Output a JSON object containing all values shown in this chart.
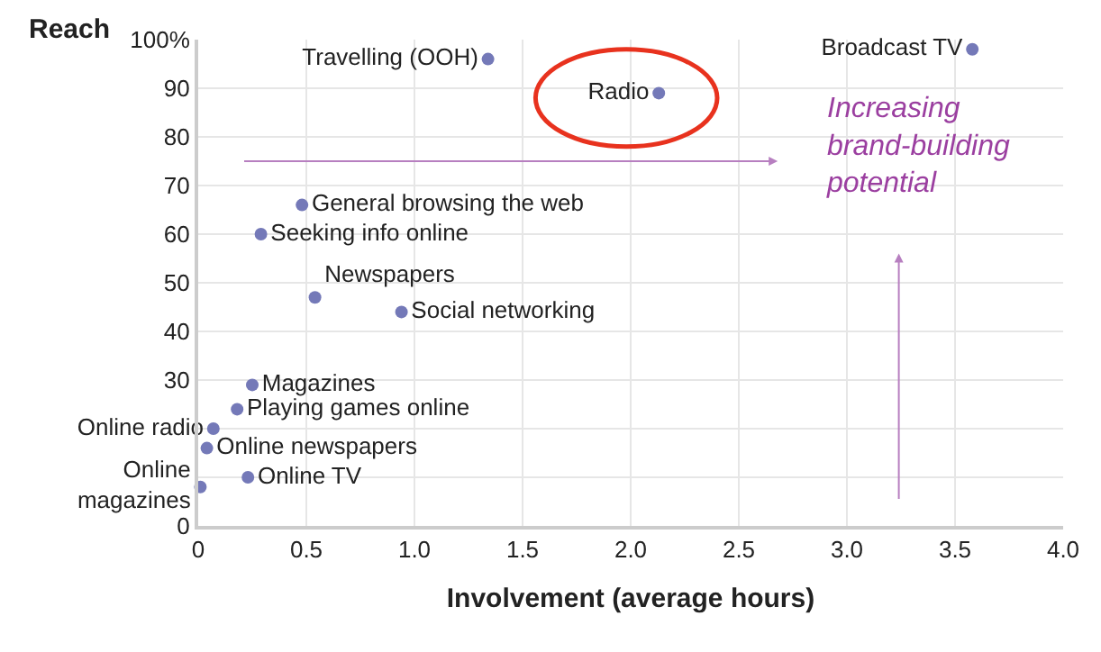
{
  "chart_data": {
    "type": "scatter",
    "xlabel": "Involvement (average hours)",
    "ylabel": "Reach",
    "xlim": [
      0,
      4
    ],
    "ylim": [
      0,
      100
    ],
    "xticks": [
      0,
      {
        "value": 0.5,
        "label": "0.5"
      },
      {
        "value": 1,
        "label": "1.0"
      },
      {
        "value": 1.5,
        "label": "1.5"
      },
      {
        "value": 2,
        "label": "2.0"
      },
      {
        "value": 2.5,
        "label": "2.5"
      },
      {
        "value": 3,
        "label": "3.0"
      },
      {
        "value": 3.5,
        "label": "3.5"
      },
      {
        "value": 4,
        "label": "4.0"
      }
    ],
    "yticks": [
      0,
      {
        "value": 10,
        "label": null
      },
      {
        "value": 20,
        "label": null
      },
      30,
      40,
      50,
      60,
      70,
      80,
      90,
      {
        "value": 100,
        "label": "100%"
      }
    ],
    "grid": true,
    "legend": false,
    "marker": "circle",
    "series": [
      {
        "name": "Travelling (OOH)",
        "color": "#7479b8",
        "x": [
          1.34
        ],
        "values": [
          96
        ]
      },
      {
        "name": "Radio",
        "color": "#7479b8",
        "x": [
          2.13
        ],
        "values": [
          89
        ]
      },
      {
        "name": "Broadcast TV",
        "color": "#7479b8",
        "x": [
          3.58
        ],
        "values": [
          98
        ]
      },
      {
        "name": "General browsing the web",
        "color": "#7479b8",
        "x": [
          0.48
        ],
        "values": [
          66
        ]
      },
      {
        "name": "Seeking info online",
        "color": "#7479b8",
        "x": [
          0.29
        ],
        "values": [
          60
        ]
      },
      {
        "name": "Newspapers",
        "color": "#7479b8",
        "x": [
          0.54
        ],
        "values": [
          47
        ]
      },
      {
        "name": "Social networking",
        "color": "#7479b8",
        "x": [
          0.94
        ],
        "values": [
          44
        ]
      },
      {
        "name": "Magazines",
        "color": "#7479b8",
        "x": [
          0.25
        ],
        "values": [
          29
        ]
      },
      {
        "name": "Playing games online",
        "color": "#7479b8",
        "x": [
          0.18
        ],
        "values": [
          24
        ]
      },
      {
        "name": "Online radio",
        "color": "#7479b8",
        "x": [
          0.07
        ],
        "values": [
          20
        ]
      },
      {
        "name": "Online newspapers",
        "color": "#7479b8",
        "x": [
          0.04
        ],
        "values": [
          16
        ]
      },
      {
        "name": "Online TV",
        "color": "#7479b8",
        "x": [
          0.23
        ],
        "values": [
          10
        ]
      },
      {
        "name": "Online\nmagazines",
        "color": "#7479b8",
        "x": [
          0.01
        ],
        "values": [
          8
        ]
      }
    ],
    "annotations": [
      "Increasing\nbrand-building\npotential"
    ]
  }
}
